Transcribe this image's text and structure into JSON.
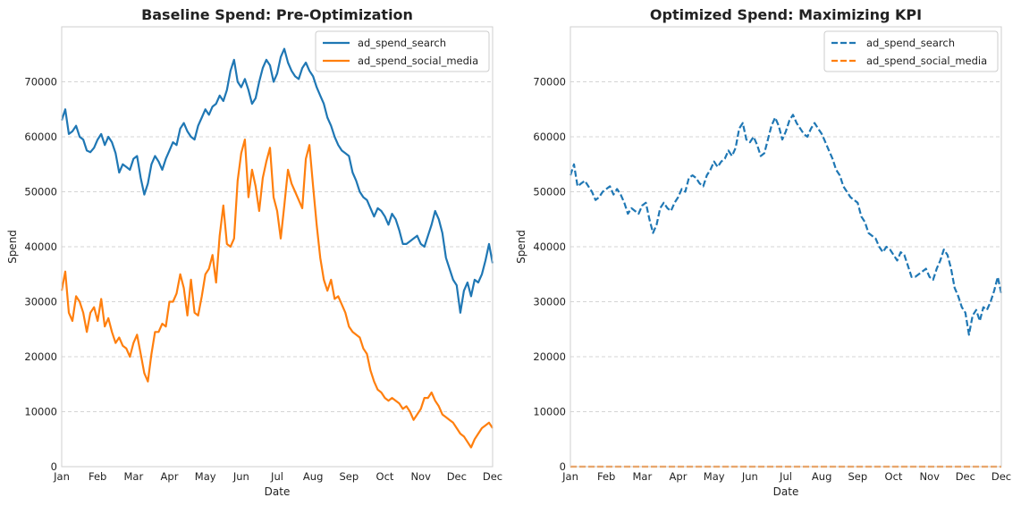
{
  "chart_data": [
    {
      "type": "line",
      "title": "Baseline Spend: Pre-Optimization",
      "xlabel": "Date",
      "ylabel": "Spend",
      "ylim": [
        0,
        80000
      ],
      "yticks": [
        0,
        10000,
        20000,
        30000,
        40000,
        50000,
        60000,
        70000
      ],
      "xtick_labels": [
        "Jan",
        "Feb",
        "Mar",
        "Apr",
        "May",
        "Jun",
        "Jul",
        "Aug",
        "Sep",
        "Oct",
        "Nov",
        "Dec",
        "Dec"
      ],
      "grid": "horizontal dashed",
      "legend_position": "top-right",
      "series": [
        {
          "name": "ad_spend_search",
          "color": "#1f77b4",
          "linestyle": "solid",
          "values": [
            63000,
            65000,
            60500,
            61000,
            62000,
            60000,
            59500,
            57500,
            57200,
            58000,
            59500,
            60500,
            58500,
            60000,
            59000,
            57000,
            53500,
            55000,
            54500,
            54000,
            56000,
            56500,
            52500,
            49500,
            51500,
            55000,
            56500,
            55500,
            54000,
            56000,
            57500,
            59000,
            58500,
            61500,
            62500,
            61000,
            60000,
            59500,
            62000,
            63500,
            65000,
            64000,
            65500,
            66000,
            67500,
            66500,
            68500,
            72000,
            74000,
            70000,
            69000,
            70500,
            68500,
            66000,
            67000,
            70000,
            72500,
            74000,
            73000,
            70000,
            71500,
            74500,
            76000,
            73500,
            72000,
            71000,
            70500,
            72500,
            73500,
            72000,
            71000,
            69000,
            67500,
            66000,
            63500,
            62000,
            60000,
            58500,
            57500,
            57000,
            56500,
            53500,
            52000,
            50000,
            49000,
            48500,
            47000,
            45500,
            47000,
            46500,
            45500,
            44000,
            46000,
            45000,
            43000,
            40500,
            40500,
            41000,
            41500,
            42000,
            40500,
            40000,
            42000,
            44000,
            46500,
            45000,
            42500,
            38000,
            36000,
            34000,
            33000,
            28000,
            32000,
            33500,
            31000,
            34000,
            33500,
            35000,
            37500,
            40500,
            37000
          ]
        },
        {
          "name": "ad_spend_social_media",
          "color": "#ff7f0e",
          "linestyle": "solid",
          "values": [
            32000,
            35500,
            28000,
            26500,
            31000,
            30000,
            28000,
            24500,
            28000,
            29000,
            26500,
            30500,
            25500,
            27000,
            24500,
            22500,
            23500,
            22000,
            21500,
            20000,
            22500,
            24000,
            20500,
            17000,
            15500,
            20500,
            24500,
            24500,
            26000,
            25500,
            30000,
            30000,
            31500,
            35000,
            32500,
            27500,
            34000,
            28000,
            27500,
            31000,
            35000,
            36000,
            38500,
            33500,
            42000,
            47500,
            40500,
            40000,
            41500,
            52000,
            57000,
            59500,
            49000,
            54000,
            51000,
            46500,
            52500,
            55500,
            58000,
            49000,
            46500,
            41500,
            47500,
            54000,
            51500,
            50000,
            48500,
            47000,
            56000,
            58500,
            51000,
            44000,
            38000,
            34000,
            32000,
            34000,
            30500,
            31000,
            29500,
            28000,
            25500,
            24500,
            24000,
            23500,
            21500,
            20500,
            17500,
            15500,
            14000,
            13500,
            12500,
            12000,
            12500,
            12000,
            11500,
            10500,
            11000,
            10000,
            8500,
            9500,
            10500,
            12500,
            12500,
            13500,
            12000,
            11000,
            9500,
            9000,
            8500,
            8000,
            7000,
            6000,
            5500,
            4500,
            3500,
            5000,
            6000,
            7000,
            7500,
            8000,
            7000
          ]
        }
      ]
    },
    {
      "type": "line",
      "title": "Optimized Spend: Maximizing KPI",
      "xlabel": "Date",
      "ylabel": "Spend",
      "ylim": [
        0,
        80000
      ],
      "yticks": [
        0,
        10000,
        20000,
        30000,
        40000,
        50000,
        60000,
        70000
      ],
      "xtick_labels": [
        "Jan",
        "Feb",
        "Mar",
        "Apr",
        "May",
        "Jun",
        "Jul",
        "Aug",
        "Sep",
        "Oct",
        "Nov",
        "Dec",
        "Dec"
      ],
      "grid": "horizontal dashed",
      "legend_position": "top-right",
      "series": [
        {
          "name": "ad_spend_search",
          "color": "#1f77b4",
          "linestyle": "dashed",
          "values": [
            53000,
            55000,
            51000,
            51500,
            52000,
            51000,
            50000,
            48500,
            49000,
            50000,
            50500,
            51000,
            49500,
            50500,
            49500,
            48000,
            46000,
            47000,
            46500,
            46000,
            47500,
            48000,
            45000,
            42500,
            44000,
            47000,
            48000,
            47000,
            46500,
            48000,
            49000,
            50500,
            50000,
            52500,
            53000,
            52500,
            51500,
            51000,
            53000,
            54000,
            55500,
            54500,
            55500,
            56000,
            57500,
            56500,
            58000,
            61500,
            62500,
            59500,
            59000,
            60000,
            58500,
            56500,
            57000,
            59500,
            62000,
            63500,
            62000,
            59500,
            61000,
            63000,
            64000,
            62500,
            61500,
            60500,
            60000,
            61500,
            62500,
            61500,
            60500,
            59000,
            57500,
            56000,
            54000,
            53000,
            51000,
            50000,
            49000,
            48500,
            48000,
            45500,
            44500,
            42500,
            42000,
            41500,
            40000,
            39000,
            40000,
            39500,
            38500,
            37500,
            39000,
            38500,
            36500,
            34500,
            34500,
            35000,
            35500,
            36000,
            34500,
            34000,
            36000,
            37500,
            39500,
            38500,
            36000,
            32500,
            31000,
            29000,
            28000,
            24000,
            27500,
            28500,
            26500,
            29000,
            28500,
            30000,
            32000,
            34500,
            31500
          ]
        },
        {
          "name": "ad_spend_social_media",
          "color": "#ff7f0e",
          "linestyle": "dashed",
          "values": [
            0,
            0,
            0,
            0,
            0,
            0,
            0,
            0,
            0,
            0,
            0,
            0,
            0,
            0,
            0,
            0,
            0,
            0,
            0,
            0,
            0,
            0,
            0,
            0,
            0,
            0,
            0,
            0,
            0,
            0,
            0,
            0,
            0,
            0,
            0,
            0,
            0,
            0,
            0,
            0,
            0,
            0,
            0,
            0,
            0,
            0,
            0,
            0,
            0,
            0,
            0,
            0,
            0,
            0,
            0,
            0,
            0,
            0,
            0,
            0,
            0,
            0,
            0,
            0,
            0,
            0,
            0,
            0,
            0,
            0,
            0,
            0,
            0,
            0,
            0,
            0,
            0,
            0,
            0,
            0,
            0,
            0,
            0,
            0,
            0,
            0,
            0,
            0,
            0,
            0,
            0,
            0,
            0,
            0,
            0,
            0,
            0,
            0,
            0,
            0,
            0,
            0,
            0,
            0,
            0,
            0,
            0,
            0,
            0,
            0,
            0,
            0,
            0,
            0,
            0,
            0,
            0,
            0,
            0,
            0,
            0
          ]
        }
      ]
    }
  ]
}
